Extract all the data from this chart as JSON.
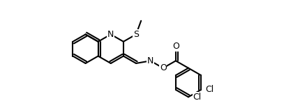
{
  "bg": "#ffffff",
  "lc": "#000000",
  "lw": 1.5,
  "fs": 9,
  "b": 0.27,
  "figw": 4.31,
  "figh": 1.58,
  "dpi": 100
}
